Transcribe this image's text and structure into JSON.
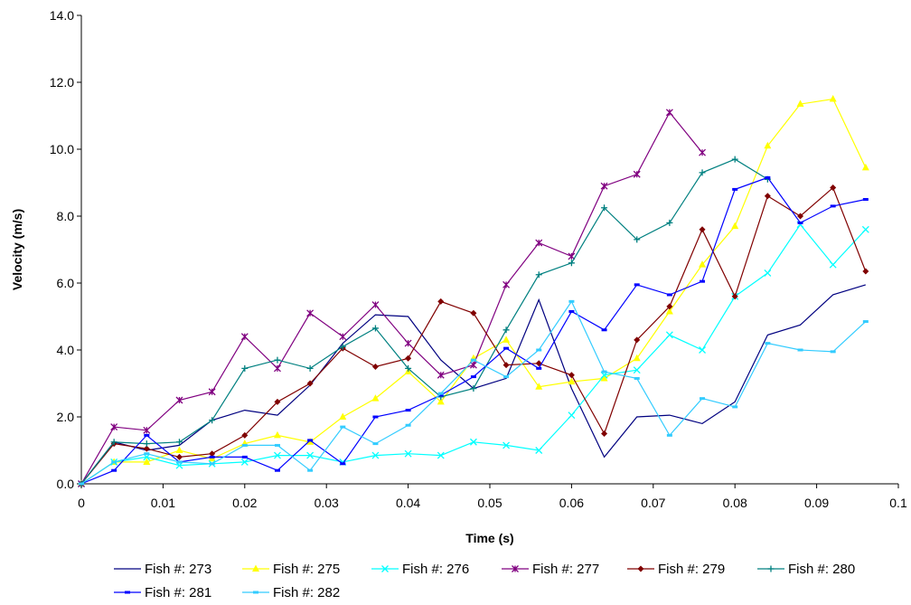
{
  "chart_data": {
    "type": "line",
    "title": "",
    "xlabel": "Time (s)",
    "ylabel": "Velocity (m/s)",
    "xlim": [
      0,
      0.1
    ],
    "ylim": [
      0,
      14
    ],
    "x_ticks": [
      0,
      0.01,
      0.02,
      0.03,
      0.04,
      0.05,
      0.06,
      0.07,
      0.08,
      0.09,
      0.1
    ],
    "x_tick_labels": [
      "0",
      "0.01",
      "0.02",
      "0.03",
      "0.04",
      "0.05",
      "0.06",
      "0.07",
      "0.08",
      "0.09",
      "0.1"
    ],
    "y_ticks": [
      0,
      2,
      4,
      6,
      8,
      10,
      12,
      14
    ],
    "y_tick_labels": [
      "0.0",
      "2.0",
      "4.0",
      "6.0",
      "8.0",
      "10.0",
      "12.0",
      "14.0"
    ],
    "grid": false,
    "legend_position": "bottom",
    "series": [
      {
        "name": "Fish #:  273",
        "color": "#000080",
        "marker": "none",
        "x": [
          0,
          0.004,
          0.008,
          0.012,
          0.016,
          0.02,
          0.024,
          0.028,
          0.032,
          0.036,
          0.04,
          0.044,
          0.048,
          0.052,
          0.056,
          0.06,
          0.064,
          0.068,
          0.072,
          0.076,
          0.08,
          0.084,
          0.088,
          0.092,
          0.096
        ],
        "y": [
          0,
          1.25,
          1.0,
          1.15,
          1.9,
          2.2,
          2.05,
          2.95,
          4.2,
          5.05,
          5.0,
          3.7,
          2.85,
          3.15,
          5.5,
          2.85,
          0.8,
          2.0,
          2.05,
          1.8,
          2.45,
          4.45,
          4.75,
          5.65,
          5.95
        ]
      },
      {
        "name": "Fish #:  275",
        "color": "#ffff00",
        "marker": "triangle",
        "x": [
          0,
          0.004,
          0.008,
          0.012,
          0.016,
          0.02,
          0.024,
          0.028,
          0.032,
          0.036,
          0.04,
          0.044,
          0.048,
          0.052,
          0.056,
          0.06,
          0.064,
          0.068,
          0.072,
          0.076,
          0.08,
          0.084,
          0.088,
          0.092,
          0.096
        ],
        "y": [
          0,
          0.65,
          0.65,
          1.0,
          0.75,
          1.2,
          1.45,
          1.25,
          2.0,
          2.55,
          3.35,
          2.45,
          3.75,
          4.3,
          2.9,
          3.05,
          3.15,
          3.75,
          5.15,
          6.55,
          7.7,
          10.1,
          11.35,
          11.5,
          9.45
        ]
      },
      {
        "name": "Fish #:  276",
        "color": "#00ffff",
        "marker": "x",
        "x": [
          0,
          0.004,
          0.008,
          0.012,
          0.016,
          0.02,
          0.024,
          0.028,
          0.032,
          0.036,
          0.04,
          0.044,
          0.048,
          0.052,
          0.056,
          0.06,
          0.064,
          0.068,
          0.072,
          0.076,
          0.08,
          0.084,
          0.088,
          0.092,
          0.096
        ],
        "y": [
          0,
          0.65,
          0.8,
          0.55,
          0.6,
          0.65,
          0.85,
          0.85,
          0.65,
          0.85,
          0.9,
          0.85,
          1.25,
          1.15,
          1.0,
          2.05,
          3.25,
          3.4,
          4.45,
          4.0,
          5.6,
          6.3,
          7.75,
          6.55,
          7.6
        ]
      },
      {
        "name": "Fish #:  277",
        "color": "#800080",
        "marker": "star",
        "x": [
          0,
          0.004,
          0.008,
          0.012,
          0.016,
          0.02,
          0.024,
          0.028,
          0.032,
          0.036,
          0.04,
          0.044,
          0.048,
          0.052,
          0.056,
          0.06,
          0.064,
          0.068,
          0.072,
          0.076
        ],
        "y": [
          0,
          1.7,
          1.6,
          2.5,
          2.75,
          4.4,
          3.45,
          5.1,
          4.4,
          5.35,
          4.2,
          3.25,
          3.55,
          5.95,
          7.2,
          6.8,
          8.9,
          9.25,
          11.1,
          9.9
        ]
      },
      {
        "name": "Fish #:  279",
        "color": "#800000",
        "marker": "diamond",
        "x": [
          0,
          0.004,
          0.008,
          0.012,
          0.016,
          0.02,
          0.024,
          0.028,
          0.032,
          0.036,
          0.04,
          0.044,
          0.048,
          0.052,
          0.056,
          0.06,
          0.064,
          0.068,
          0.072,
          0.076,
          0.08,
          0.084,
          0.088,
          0.092,
          0.096
        ],
        "y": [
          0,
          1.2,
          1.05,
          0.8,
          0.9,
          1.45,
          2.45,
          3.0,
          4.05,
          3.5,
          3.75,
          5.45,
          5.1,
          3.55,
          3.6,
          3.25,
          1.5,
          4.3,
          5.3,
          7.6,
          5.6,
          8.6,
          8.0,
          8.85,
          6.35
        ]
      },
      {
        "name": "Fish #:  280",
        "color": "#008080",
        "marker": "plus",
        "x": [
          0,
          0.004,
          0.008,
          0.012,
          0.016,
          0.02,
          0.024,
          0.028,
          0.032,
          0.036,
          0.04,
          0.044,
          0.048,
          0.052,
          0.056,
          0.06,
          0.064,
          0.068,
          0.072,
          0.076,
          0.08,
          0.084
        ],
        "y": [
          0,
          1.25,
          1.2,
          1.25,
          1.9,
          3.45,
          3.7,
          3.45,
          4.1,
          4.65,
          3.45,
          2.6,
          2.85,
          4.6,
          6.25,
          6.6,
          8.25,
          7.3,
          7.8,
          9.3,
          9.7,
          9.1
        ]
      },
      {
        "name": "Fish #:  281",
        "color": "#0000ff",
        "marker": "dash",
        "x": [
          0,
          0.004,
          0.008,
          0.012,
          0.016,
          0.02,
          0.024,
          0.028,
          0.032,
          0.036,
          0.04,
          0.044,
          0.048,
          0.052,
          0.056,
          0.06,
          0.064,
          0.068,
          0.072,
          0.076,
          0.08,
          0.084,
          0.088,
          0.092,
          0.096
        ],
        "y": [
          0,
          0.4,
          1.45,
          0.65,
          0.8,
          0.8,
          0.4,
          1.3,
          0.6,
          2.0,
          2.2,
          2.65,
          3.2,
          4.05,
          3.45,
          5.15,
          4.6,
          5.95,
          5.65,
          6.05,
          8.8,
          9.15,
          7.8,
          8.3,
          8.5
        ]
      },
      {
        "name": "Fish #:  282",
        "color": "#33ccff",
        "marker": "dash",
        "x": [
          0,
          0.004,
          0.008,
          0.012,
          0.016,
          0.02,
          0.024,
          0.028,
          0.032,
          0.036,
          0.04,
          0.044,
          0.048,
          0.052,
          0.056,
          0.06,
          0.064,
          0.068,
          0.072,
          0.076,
          0.08,
          0.084,
          0.088,
          0.092,
          0.096
        ],
        "y": [
          0,
          0.65,
          0.9,
          0.65,
          0.6,
          1.15,
          1.15,
          0.4,
          1.7,
          1.2,
          1.75,
          2.7,
          3.7,
          3.2,
          4.0,
          5.45,
          3.35,
          3.15,
          1.45,
          2.55,
          2.3,
          4.2,
          4.0,
          3.95,
          4.85
        ]
      }
    ]
  }
}
